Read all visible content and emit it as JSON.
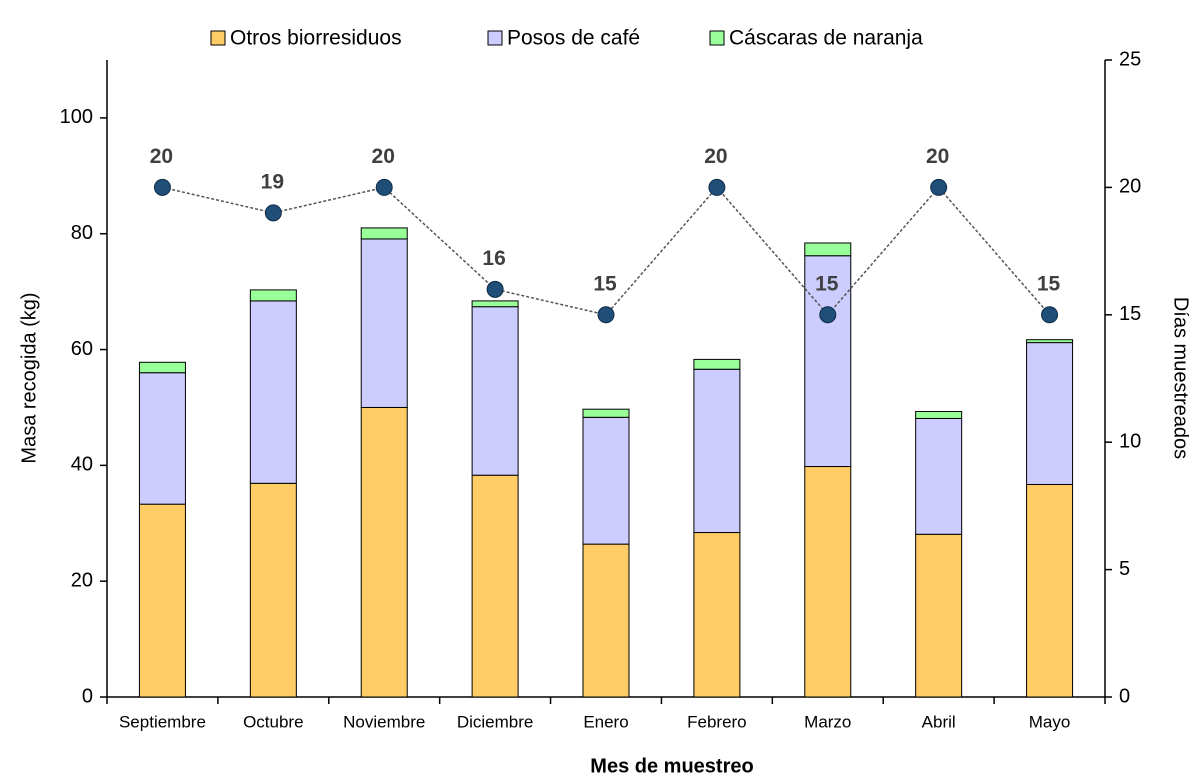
{
  "chart_data": {
    "type": "bar",
    "stacked": true,
    "categories": [
      "Septiembre",
      "Octubre",
      "Noviembre",
      "Diciembre",
      "Enero",
      "Febrero",
      "Marzo",
      "Abril",
      "Mayo"
    ],
    "series": [
      {
        "name": "Otros biorresiduos",
        "color": "#ffcc66",
        "values": [
          33.3,
          36.9,
          50.0,
          38.3,
          26.4,
          28.4,
          39.8,
          28.1,
          36.7
        ]
      },
      {
        "name": "Posos de café",
        "color": "#ccccff",
        "values": [
          22.7,
          31.5,
          29.1,
          29.1,
          21.9,
          28.2,
          36.4,
          20.0,
          24.5
        ]
      },
      {
        "name": "Cáscaras de naranja",
        "color": "#99ff99",
        "values": [
          1.8,
          1.9,
          1.9,
          1.0,
          1.4,
          1.7,
          2.2,
          1.2,
          0.5
        ]
      }
    ],
    "line": {
      "type": "line",
      "axis": "y2",
      "color": "#1f4e79",
      "values": [
        20,
        19,
        20,
        16,
        15,
        20,
        15,
        20,
        15
      ]
    },
    "xlabel": "Mes de muestreo",
    "ylabel": "Masa recogida (kg)",
    "y2label": "Días muestreados",
    "ylim": [
      0,
      110
    ],
    "yticks": [
      0,
      20,
      40,
      60,
      80,
      100
    ],
    "y2lim": [
      0,
      25
    ],
    "y2ticks": [
      0,
      5,
      10,
      15,
      20,
      25
    ],
    "grid": false,
    "legend": "top"
  }
}
